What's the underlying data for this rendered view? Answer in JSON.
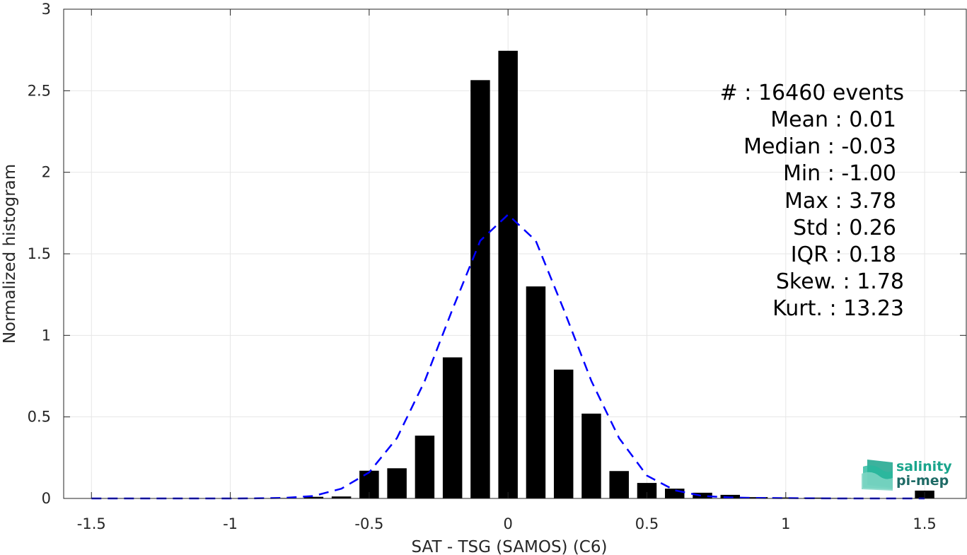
{
  "chart_data": {
    "type": "bar",
    "xlabel": "SAT - TSG (SAMOS) (C6)",
    "ylabel": "Normalized histogram",
    "xlim": [
      -1.6,
      1.65
    ],
    "ylim": [
      0,
      3
    ],
    "xticks": [
      -1.5,
      -1,
      -0.5,
      0,
      0.5,
      1,
      1.5
    ],
    "xtick_labels": [
      "-1.5",
      "-1",
      "-0.5",
      "0",
      "0.5",
      "1",
      "1.5"
    ],
    "yticks": [
      0,
      0.5,
      1,
      1.5,
      2,
      2.5,
      3
    ],
    "ytick_labels": [
      "0",
      "0.5",
      "1",
      "1.5",
      "2",
      "2.5",
      "3"
    ],
    "grid": true,
    "bar_width": 0.07,
    "bars": {
      "x": [
        -1.5,
        -1.4,
        -1.3,
        -1.2,
        -1.1,
        -1.0,
        -0.9,
        -0.8,
        -0.7,
        -0.6,
        -0.5,
        -0.4,
        -0.3,
        -0.2,
        -0.1,
        0.0,
        0.1,
        0.2,
        0.3,
        0.4,
        0.5,
        0.6,
        0.7,
        0.8,
        0.9,
        1.0,
        1.1,
        1.2,
        1.3,
        1.4,
        1.5
      ],
      "y": [
        0,
        0,
        0,
        0,
        0,
        0,
        0,
        0.003,
        0.01,
        0.012,
        0.17,
        0.185,
        0.385,
        0.865,
        2.565,
        2.745,
        1.3,
        0.79,
        0.52,
        0.168,
        0.095,
        0.06,
        0.035,
        0.022,
        0.008,
        0.006,
        0.005,
        0.003,
        0.002,
        0.002,
        0.048
      ],
      "color": "#000000"
    },
    "fit_line": {
      "style": "dashed",
      "color": "#0000ff",
      "x": [
        -1.5,
        -1.4,
        -1.3,
        -1.2,
        -1.1,
        -1.0,
        -0.9,
        -0.8,
        -0.7,
        -0.6,
        -0.5,
        -0.4,
        -0.3,
        -0.2,
        -0.1,
        0.0,
        0.1,
        0.2,
        0.3,
        0.4,
        0.5,
        0.6,
        0.7,
        0.8,
        0.9,
        1.0,
        1.1,
        1.2,
        1.3,
        1.4,
        1.5
      ],
      "y": [
        0,
        0,
        0,
        0,
        0,
        0,
        0.001,
        0.004,
        0.015,
        0.06,
        0.16,
        0.37,
        0.72,
        1.16,
        1.58,
        1.74,
        1.58,
        1.16,
        0.72,
        0.37,
        0.14,
        0.05,
        0.015,
        0.006,
        0.003,
        0.002,
        0.001,
        0,
        0,
        0,
        0
      ]
    },
    "annotations": [
      "#  : 16460 events",
      "Mean : 0.01",
      "Median : -0.03",
      "Min : -1.00",
      "Max : 3.78",
      "Std : 0.26",
      "IQR : 0.18",
      "Skew. : 1.78",
      "Kurt. : 13.23"
    ]
  },
  "logo": {
    "line1": "salinity",
    "line2": "pi-mep",
    "color1": "#1aa58c",
    "color2": "#1f6b66"
  }
}
